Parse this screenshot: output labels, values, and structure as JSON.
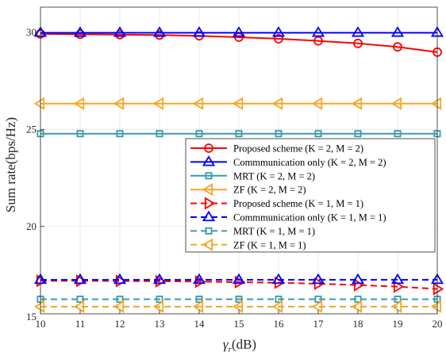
{
  "chart_data": {
    "type": "line",
    "xlabel": "γr(dB)",
    "ylabel": "Sum rate(bps/Hz)",
    "x": [
      10,
      11,
      12,
      13,
      14,
      15,
      16,
      17,
      18,
      19,
      20
    ],
    "xlim": [
      10,
      20
    ],
    "ylim": [
      15.5,
      31.3
    ],
    "xticks": [
      "10",
      "11",
      "12",
      "13",
      "14",
      "15",
      "16",
      "17",
      "18",
      "19",
      "20"
    ],
    "yticks": [
      "15",
      "20",
      "25",
      "30"
    ],
    "grid": true,
    "legend_position": "center-right",
    "series": [
      {
        "name": "Proposed scheme (K = 2, M = 2)",
        "color": "#ff0000",
        "dash": "solid",
        "marker": "circle",
        "values": [
          29.92,
          29.9,
          29.88,
          29.86,
          29.82,
          29.75,
          29.67,
          29.56,
          29.43,
          29.25,
          28.98
        ]
      },
      {
        "name": "Commmunication only (K = 2, M = 2)",
        "color": "#0000ff",
        "dash": "solid",
        "marker": "triangle-up",
        "values": [
          29.98,
          29.98,
          29.98,
          29.98,
          29.98,
          29.98,
          29.98,
          29.98,
          29.98,
          29.98,
          29.98
        ]
      },
      {
        "name": "MRT (K = 2, M = 2)",
        "color": "#3a9aaa",
        "dash": "solid",
        "marker": "square",
        "values": [
          24.78,
          24.78,
          24.78,
          24.78,
          24.78,
          24.78,
          24.78,
          24.78,
          24.78,
          24.78,
          24.78
        ]
      },
      {
        "name": "ZF (K = 2, M = 2)",
        "color": "#f5a623",
        "dash": "solid",
        "marker": "triangle-left",
        "values": [
          26.33,
          26.33,
          26.33,
          26.33,
          26.33,
          26.33,
          26.33,
          26.33,
          26.33,
          26.33,
          26.33
        ]
      },
      {
        "name": "Proposed scheme (K = 1, M = 1)",
        "color": "#ff0000",
        "dash": "dashed",
        "marker": "triangle-right",
        "values": [
          17.2,
          17.2,
          17.19,
          17.18,
          17.16,
          17.13,
          17.1,
          17.05,
          16.98,
          16.9,
          16.78
        ]
      },
      {
        "name": "Commmunication only (K = 1, M = 1)",
        "color": "#0000ff",
        "dash": "dashed",
        "marker": "triangle-up",
        "values": [
          17.25,
          17.25,
          17.25,
          17.25,
          17.25,
          17.25,
          17.25,
          17.25,
          17.25,
          17.25,
          17.25
        ]
      },
      {
        "name": "MRT (K = 1, M = 1)",
        "color": "#3a9aaa",
        "dash": "dashed",
        "marker": "square",
        "values": [
          16.25,
          16.25,
          16.25,
          16.25,
          16.25,
          16.25,
          16.25,
          16.25,
          16.25,
          16.25,
          16.25
        ]
      },
      {
        "name": "ZF (K = 1, M = 1)",
        "color": "#f5a623",
        "dash": "dashed",
        "marker": "triangle-left",
        "values": [
          15.87,
          15.87,
          15.87,
          15.87,
          15.87,
          15.87,
          15.87,
          15.87,
          15.87,
          15.87,
          15.87
        ]
      }
    ]
  }
}
